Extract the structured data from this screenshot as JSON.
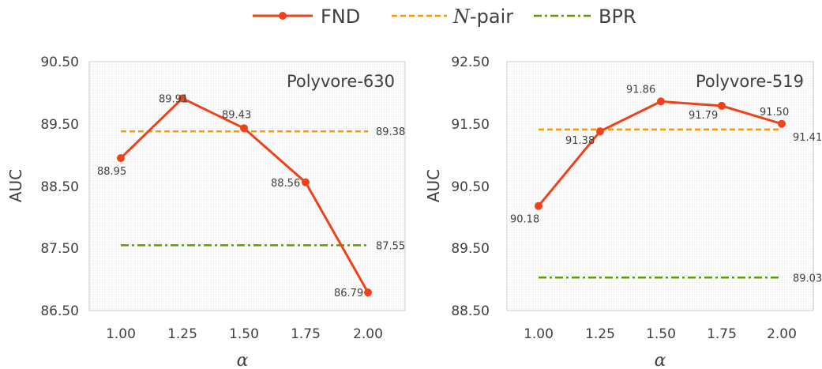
{
  "legend": {
    "fnd": "FND",
    "npair_italic": "N",
    "npair_rest": "-pair",
    "bpr": "BPR"
  },
  "colors": {
    "fnd": "#f0421a",
    "npair": "#ff9900",
    "bpr": "#5c9e00",
    "grid": "#d9d9d9"
  },
  "chart_data": [
    {
      "type": "line",
      "title": "Polyvore-630",
      "xlabel": "α",
      "ylabel": "AUC",
      "x": [
        "1.00",
        "1.25",
        "1.50",
        "1.75",
        "2.00"
      ],
      "yticks": [
        "86.50",
        "87.50",
        "88.50",
        "89.50",
        "90.50"
      ],
      "ylim": [
        86.5,
        90.5
      ],
      "series": [
        {
          "name": "FND",
          "style": "solid-marker",
          "values": [
            88.95,
            89.91,
            89.43,
            88.56,
            86.79
          ],
          "labels": [
            "88.95",
            "89.91",
            "89.43",
            "88.56",
            "86.79"
          ]
        },
        {
          "name": "N-pair",
          "style": "dashed",
          "value": 89.38,
          "label": "89.38"
        },
        {
          "name": "BPR",
          "style": "dash-dot",
          "value": 87.55,
          "label": "87.55"
        }
      ]
    },
    {
      "type": "line",
      "title": "Polyvore-519",
      "xlabel": "α",
      "ylabel": "AUC",
      "x": [
        "1.00",
        "1.25",
        "1.50",
        "1.75",
        "2.00"
      ],
      "yticks": [
        "88.50",
        "89.50",
        "90.50",
        "91.50",
        "92.50"
      ],
      "ylim": [
        88.5,
        92.5
      ],
      "series": [
        {
          "name": "FND",
          "style": "solid-marker",
          "values": [
            90.18,
            91.38,
            91.86,
            91.79,
            91.5
          ],
          "labels": [
            "90.18",
            "91.38",
            "91.86",
            "91.79",
            "91.50"
          ]
        },
        {
          "name": "N-pair",
          "style": "dashed",
          "value": 91.41,
          "label": "91.41"
        },
        {
          "name": "BPR",
          "style": "dash-dot",
          "value": 89.03,
          "label": "89.03"
        }
      ]
    }
  ]
}
